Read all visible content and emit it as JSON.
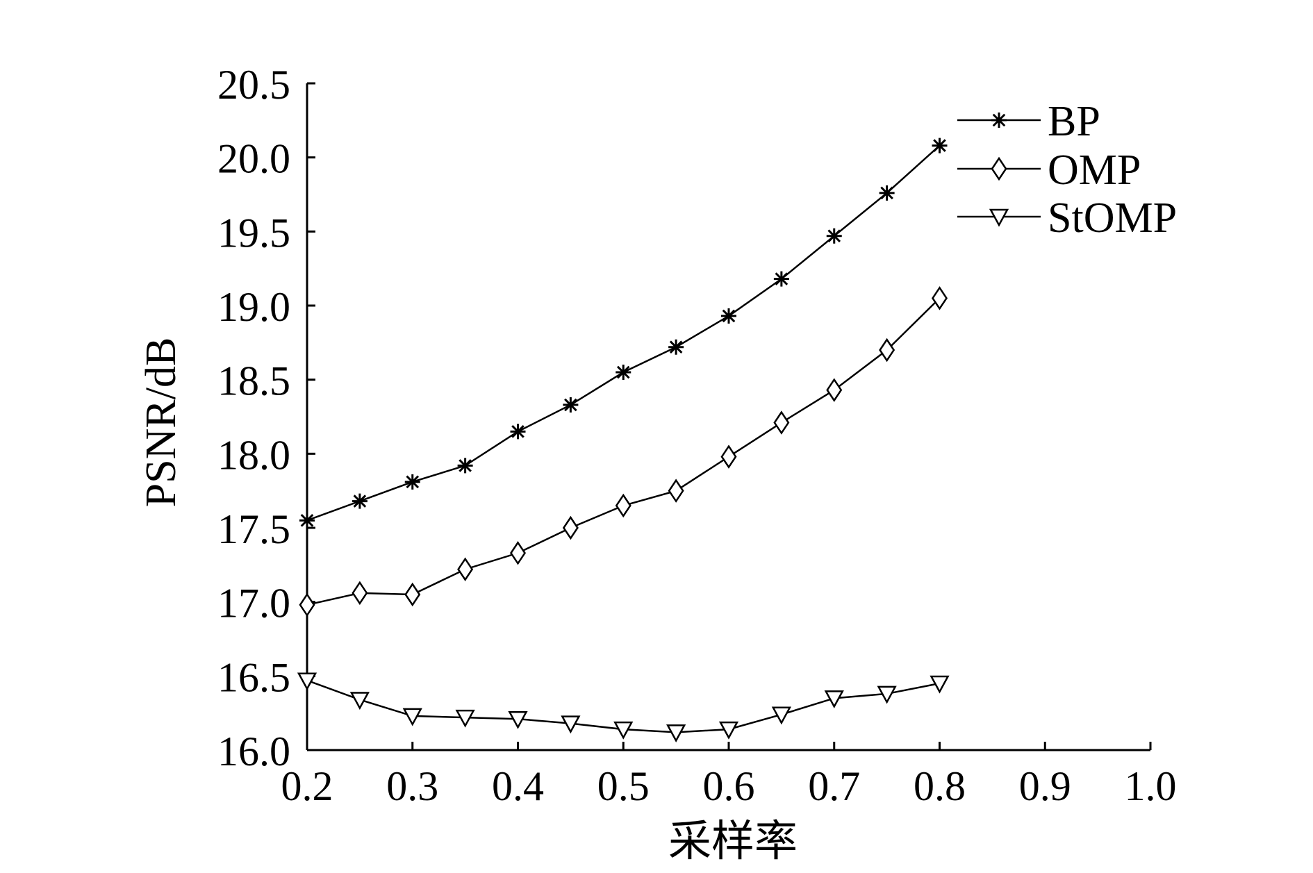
{
  "chart_data": {
    "type": "line",
    "title": "",
    "xlabel": "采样率",
    "ylabel": "PSNR/dB",
    "xlim": [
      0.2,
      1.0
    ],
    "ylim": [
      16.0,
      20.5
    ],
    "x_ticks": [
      "0.2",
      "0.3",
      "0.4",
      "0.5",
      "0.6",
      "0.7",
      "0.8",
      "0.9",
      "1.0"
    ],
    "y_ticks": [
      "16.0",
      "16.5",
      "17.0",
      "17.5",
      "18.0",
      "18.5",
      "19.0",
      "19.5",
      "20.0",
      "20.5"
    ],
    "grid": false,
    "legend_position": "top-right",
    "x": [
      0.2,
      0.25,
      0.3,
      0.35,
      0.4,
      0.45,
      0.5,
      0.55,
      0.6,
      0.65,
      0.7,
      0.75,
      0.8
    ],
    "series": [
      {
        "name": "BP",
        "marker": "asterisk",
        "values": [
          17.55,
          17.68,
          17.81,
          17.92,
          18.15,
          18.33,
          18.55,
          18.72,
          18.93,
          19.18,
          19.47,
          19.76,
          20.08
        ]
      },
      {
        "name": "OMP",
        "marker": "diamond",
        "values": [
          16.98,
          17.06,
          17.05,
          17.22,
          17.33,
          17.5,
          17.65,
          17.75,
          17.98,
          18.21,
          18.43,
          18.7,
          19.05
        ]
      },
      {
        "name": "StOMP",
        "marker": "triangle-down",
        "values": [
          16.47,
          16.34,
          16.23,
          16.22,
          16.21,
          16.18,
          16.14,
          16.12,
          16.14,
          16.24,
          16.35,
          16.38,
          16.45
        ]
      }
    ]
  }
}
